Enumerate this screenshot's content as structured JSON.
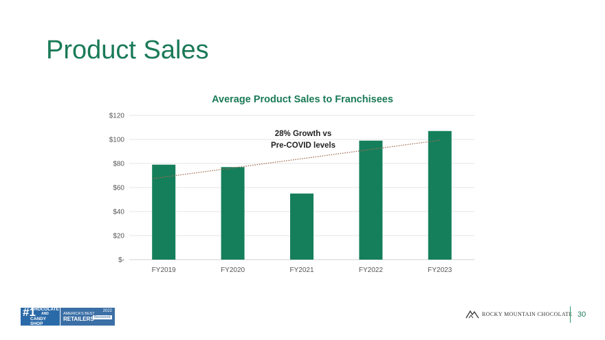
{
  "slide": {
    "title": "Product Sales",
    "page_number": "30"
  },
  "footer": {
    "badge_rank": "#1",
    "badge_line1": "CHOCOLATE",
    "badge_line2": "AND",
    "badge_line3": "CANDY SHOP",
    "badge2_top": "AMERICA'S BEST",
    "badge2_main": "RETAILERS",
    "badge2_year": "2022",
    "badge2_pub": "Newsweek",
    "company_logo_text": "ROCKY MOUNTAIN CHOCOLATE"
  },
  "chart_data": {
    "type": "bar",
    "title": "Average Product Sales to Franchisees",
    "categories": [
      "FY2019",
      "FY2020",
      "FY2021",
      "FY2022",
      "FY2023"
    ],
    "values": [
      79,
      77,
      55,
      99,
      107
    ],
    "ylim": [
      0,
      120
    ],
    "yticks": [
      0,
      20,
      40,
      60,
      80,
      100,
      120
    ],
    "ytick_labels": [
      "$-",
      "$20",
      "$40",
      "$60",
      "$80",
      "$100",
      "$120"
    ],
    "xlabel": "",
    "ylabel": "",
    "bar_color": "#157f5c",
    "grid": true,
    "trendline": {
      "style": "dotted",
      "color": "#a06a50",
      "from_value": 67.5,
      "to_value": 99.5
    },
    "annotation_line1": "28% Growth vs",
    "annotation_line2": "Pre-COVID levels"
  }
}
